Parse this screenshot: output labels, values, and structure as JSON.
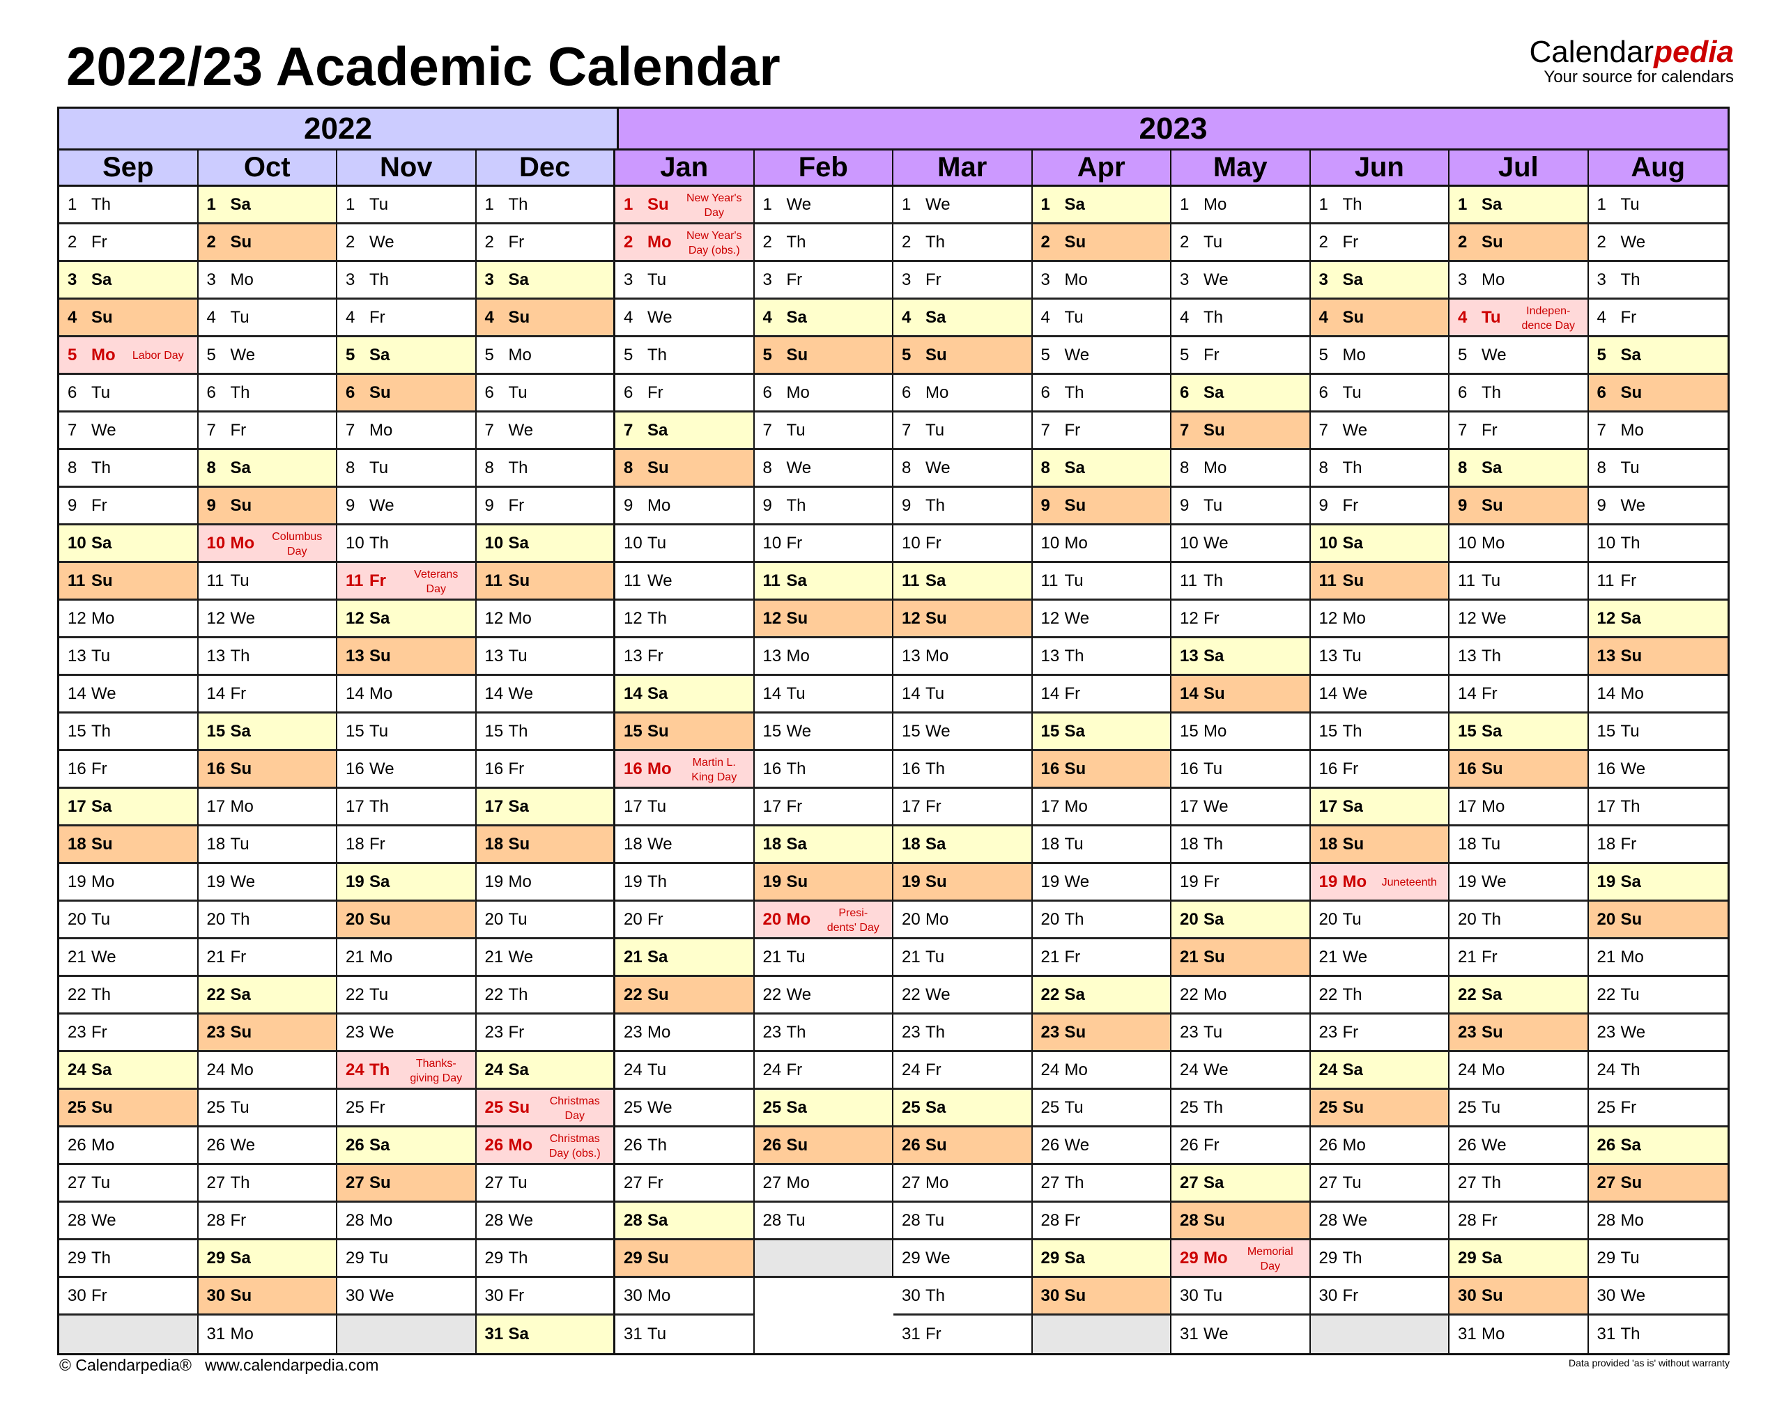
{
  "title": "2022/23 Academic Calendar",
  "logo": {
    "brand_main": "Calendar",
    "brand_accent": "pedia",
    "tagline": "Your source for calendars"
  },
  "years": [
    "2022",
    "2023"
  ],
  "weekdays": [
    "Mo",
    "Tu",
    "We",
    "Th",
    "Fr",
    "Sa",
    "Su"
  ],
  "colors": {
    "year_2022": "#ccccff",
    "year_2023": "#cc99ff",
    "saturday": "#ffffcc",
    "sunday": "#ffcc99",
    "holiday": "#ffd9d9",
    "holiday_text": "#cc0000",
    "empty": "#e6e6e6"
  },
  "months": [
    {
      "name": "Sep",
      "year": "2022",
      "first_weekday": "Th",
      "days": 30,
      "holidays": {
        "5": "Labor Day"
      }
    },
    {
      "name": "Oct",
      "year": "2022",
      "first_weekday": "Sa",
      "days": 31,
      "holidays": {
        "10": "Columbus\nDay"
      }
    },
    {
      "name": "Nov",
      "year": "2022",
      "first_weekday": "Tu",
      "days": 30,
      "holidays": {
        "11": "Veterans\nDay",
        "24": "Thanks-\ngiving Day"
      }
    },
    {
      "name": "Dec",
      "year": "2022",
      "first_weekday": "Th",
      "days": 31,
      "holidays": {
        "25": "Christmas\nDay",
        "26": "Christmas\nDay (obs.)"
      }
    },
    {
      "name": "Jan",
      "year": "2023",
      "first_weekday": "Su",
      "days": 31,
      "holidays": {
        "1": "New Year's\nDay",
        "2": "New Year's\nDay (obs.)",
        "16": "Martin L.\nKing Day"
      }
    },
    {
      "name": "Feb",
      "year": "2023",
      "first_weekday": "We",
      "days": 28,
      "holidays": {
        "20": "Presi-\ndents' Day"
      }
    },
    {
      "name": "Mar",
      "year": "2023",
      "first_weekday": "We",
      "days": 31,
      "holidays": {}
    },
    {
      "name": "Apr",
      "year": "2023",
      "first_weekday": "Sa",
      "days": 30,
      "holidays": {}
    },
    {
      "name": "May",
      "year": "2023",
      "first_weekday": "Mo",
      "days": 31,
      "holidays": {
        "29": "Memorial\nDay"
      }
    },
    {
      "name": "Jun",
      "year": "2023",
      "first_weekday": "Th",
      "days": 30,
      "holidays": {
        "19": "Juneteenth"
      }
    },
    {
      "name": "Jul",
      "year": "2023",
      "first_weekday": "Sa",
      "days": 31,
      "holidays": {
        "4": "Indepen-\ndence Day"
      }
    },
    {
      "name": "Aug",
      "year": "2023",
      "first_weekday": "Tu",
      "days": 31,
      "holidays": {}
    }
  ],
  "footer": {
    "left": "© Calendarpedia®   www.calendarpedia.com",
    "right": "Data provided 'as is' without warranty"
  }
}
